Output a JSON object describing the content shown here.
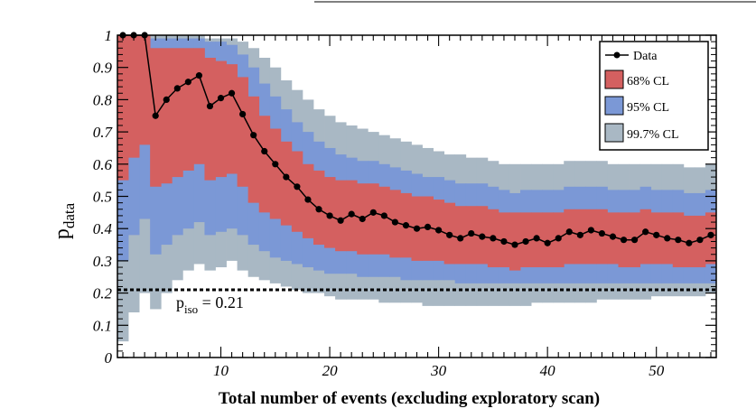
{
  "colors": {
    "band68": "#d46060",
    "band95": "#7b98d6",
    "band997": "#a9b8c4",
    "data": "#000000",
    "threshold": "#000000"
  },
  "chart_data": {
    "type": "line",
    "title": "",
    "xlabel": "Total number of events (excluding exploratory scan)",
    "ylabel_main": "p",
    "ylabel_sub": "data",
    "xlim": [
      0.5,
      55.5
    ],
    "ylim": [
      0,
      1
    ],
    "xticks": [
      10,
      20,
      30,
      40,
      50
    ],
    "xtick_labels": [
      "10",
      "20",
      "30",
      "40",
      "50"
    ],
    "yticks": [
      0,
      0.1,
      0.2,
      0.3,
      0.4,
      0.5,
      0.6,
      0.7,
      0.8,
      0.9,
      1
    ],
    "ytick_labels": [
      "0",
      "0.1",
      "0.2",
      "0.3",
      "0.4",
      "0.5",
      "0.6",
      "0.7",
      "0.8",
      "0.9",
      "1"
    ],
    "legend": {
      "position": "top-right",
      "entries": [
        "Data",
        "68% CL",
        "95% CL",
        "99.7% CL"
      ]
    },
    "threshold": {
      "value": 0.21,
      "label_main": "p",
      "label_sub": "iso",
      "label_rest": " = 0.21"
    },
    "x": [
      1,
      2,
      3,
      4,
      5,
      6,
      7,
      8,
      9,
      10,
      11,
      12,
      13,
      14,
      15,
      16,
      17,
      18,
      19,
      20,
      21,
      22,
      23,
      24,
      25,
      26,
      27,
      28,
      29,
      30,
      31,
      32,
      33,
      34,
      35,
      36,
      37,
      38,
      39,
      40,
      41,
      42,
      43,
      44,
      45,
      46,
      47,
      48,
      49,
      50,
      51,
      52,
      53,
      54,
      55
    ],
    "series": [
      {
        "name": "Data",
        "values": [
          1.0,
          1.0,
          1.0,
          0.75,
          0.8,
          0.835,
          0.855,
          0.875,
          0.78,
          0.805,
          0.82,
          0.755,
          0.69,
          0.64,
          0.6,
          0.56,
          0.53,
          0.49,
          0.46,
          0.44,
          0.425,
          0.445,
          0.43,
          0.45,
          0.44,
          0.42,
          0.41,
          0.4,
          0.405,
          0.395,
          0.38,
          0.37,
          0.385,
          0.375,
          0.37,
          0.36,
          0.35,
          0.36,
          0.37,
          0.355,
          0.37,
          0.39,
          0.38,
          0.395,
          0.385,
          0.375,
          0.365,
          0.365,
          0.39,
          0.38,
          0.37,
          0.365,
          0.355,
          0.365,
          0.38
        ]
      }
    ],
    "bands": {
      "cl68": {
        "low": [
          0.55,
          0.62,
          0.66,
          0.53,
          0.54,
          0.56,
          0.58,
          0.6,
          0.55,
          0.56,
          0.57,
          0.53,
          0.48,
          0.45,
          0.43,
          0.41,
          0.39,
          0.37,
          0.35,
          0.34,
          0.33,
          0.33,
          0.32,
          0.32,
          0.32,
          0.31,
          0.31,
          0.3,
          0.3,
          0.3,
          0.29,
          0.29,
          0.29,
          0.29,
          0.28,
          0.28,
          0.27,
          0.28,
          0.28,
          0.28,
          0.28,
          0.29,
          0.29,
          0.29,
          0.29,
          0.29,
          0.28,
          0.28,
          0.29,
          0.29,
          0.29,
          0.28,
          0.28,
          0.28,
          0.29
        ],
        "high": [
          1.0,
          1.0,
          1.0,
          0.96,
          0.96,
          0.96,
          0.96,
          0.96,
          0.93,
          0.92,
          0.91,
          0.87,
          0.81,
          0.75,
          0.71,
          0.67,
          0.64,
          0.6,
          0.58,
          0.56,
          0.55,
          0.55,
          0.54,
          0.54,
          0.53,
          0.52,
          0.51,
          0.5,
          0.5,
          0.49,
          0.48,
          0.47,
          0.47,
          0.47,
          0.46,
          0.45,
          0.45,
          0.45,
          0.45,
          0.45,
          0.45,
          0.46,
          0.46,
          0.46,
          0.46,
          0.45,
          0.45,
          0.45,
          0.46,
          0.45,
          0.45,
          0.45,
          0.44,
          0.44,
          0.45
        ]
      },
      "cl95": {
        "low": [
          0.3,
          0.38,
          0.43,
          0.32,
          0.35,
          0.38,
          0.4,
          0.42,
          0.38,
          0.39,
          0.4,
          0.38,
          0.35,
          0.33,
          0.31,
          0.3,
          0.29,
          0.28,
          0.27,
          0.26,
          0.26,
          0.26,
          0.25,
          0.25,
          0.25,
          0.25,
          0.24,
          0.24,
          0.24,
          0.24,
          0.24,
          0.23,
          0.23,
          0.23,
          0.23,
          0.23,
          0.23,
          0.23,
          0.23,
          0.23,
          0.23,
          0.23,
          0.23,
          0.23,
          0.23,
          0.23,
          0.23,
          0.23,
          0.23,
          0.23,
          0.23,
          0.23,
          0.23,
          0.23,
          0.23
        ],
        "high": [
          1.0,
          1.0,
          1.0,
          0.99,
          0.99,
          0.99,
          0.99,
          0.99,
          0.98,
          0.98,
          0.97,
          0.94,
          0.9,
          0.85,
          0.81,
          0.77,
          0.73,
          0.7,
          0.67,
          0.65,
          0.63,
          0.62,
          0.61,
          0.61,
          0.6,
          0.59,
          0.58,
          0.57,
          0.56,
          0.56,
          0.55,
          0.54,
          0.54,
          0.54,
          0.53,
          0.52,
          0.51,
          0.52,
          0.52,
          0.52,
          0.52,
          0.53,
          0.53,
          0.53,
          0.53,
          0.52,
          0.52,
          0.52,
          0.53,
          0.52,
          0.52,
          0.52,
          0.51,
          0.51,
          0.52
        ]
      },
      "cl997": {
        "low": [
          0.05,
          0.14,
          0.2,
          0.15,
          0.2,
          0.24,
          0.27,
          0.29,
          0.27,
          0.28,
          0.3,
          0.27,
          0.25,
          0.24,
          0.23,
          0.22,
          0.21,
          0.2,
          0.2,
          0.19,
          0.18,
          0.18,
          0.18,
          0.18,
          0.17,
          0.17,
          0.17,
          0.17,
          0.16,
          0.16,
          0.16,
          0.16,
          0.16,
          0.16,
          0.16,
          0.16,
          0.16,
          0.16,
          0.17,
          0.17,
          0.17,
          0.17,
          0.17,
          0.17,
          0.18,
          0.18,
          0.18,
          0.18,
          0.18,
          0.19,
          0.19,
          0.19,
          0.19,
          0.19,
          0.2
        ],
        "high": [
          1.0,
          1.0,
          1.0,
          1.0,
          1.0,
          1.0,
          1.0,
          1.0,
          0.99,
          0.99,
          0.99,
          0.98,
          0.96,
          0.93,
          0.9,
          0.86,
          0.83,
          0.8,
          0.77,
          0.75,
          0.73,
          0.72,
          0.71,
          0.7,
          0.69,
          0.68,
          0.67,
          0.66,
          0.65,
          0.64,
          0.63,
          0.63,
          0.62,
          0.62,
          0.61,
          0.6,
          0.6,
          0.6,
          0.6,
          0.6,
          0.6,
          0.61,
          0.61,
          0.61,
          0.61,
          0.6,
          0.6,
          0.6,
          0.6,
          0.6,
          0.6,
          0.6,
          0.59,
          0.59,
          0.6
        ]
      }
    }
  }
}
